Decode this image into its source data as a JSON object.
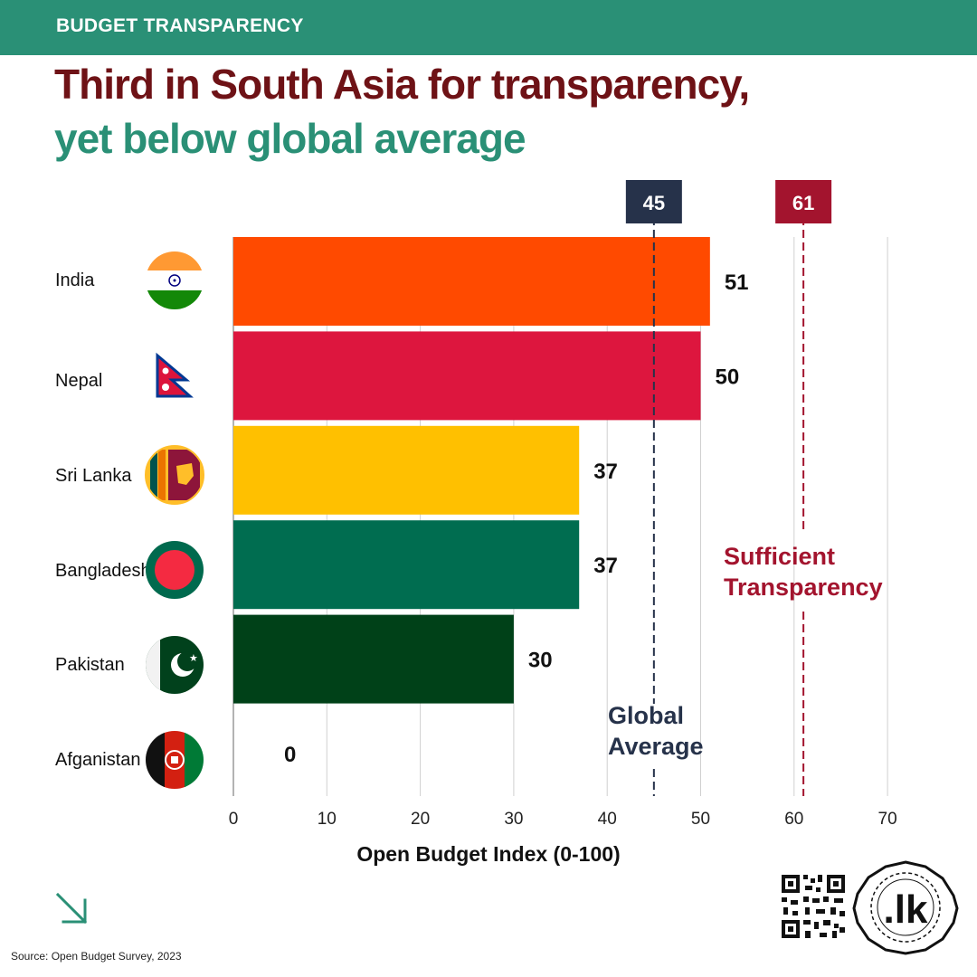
{
  "header": {
    "label": "BUDGET TRANSPARENCY"
  },
  "title": {
    "line1": "Third in South Asia for transparency,",
    "line2": "yet below global average"
  },
  "colors": {
    "brand_green": "#2a9076",
    "title_dark": "#6e1216",
    "global_average": "#26324a",
    "sufficient": "#a3142e"
  },
  "chart_data": {
    "type": "bar",
    "orientation": "horizontal",
    "categories": [
      "India",
      "Nepal",
      "Sri Lanka",
      "Bangladesh",
      "Pakistan",
      "Afganistan"
    ],
    "values": [
      51,
      50,
      37,
      37,
      30,
      0
    ],
    "bar_colors": [
      "#ff4a00",
      "#dd163e",
      "#ffc000",
      "#006d50",
      "#004118",
      "#004118"
    ],
    "value_labels": [
      "51",
      "50",
      "37",
      "37",
      "30",
      "0"
    ],
    "xlabel": "Open Budget Index (0-100)",
    "xlim": [
      0,
      70
    ],
    "xticks": [
      0,
      10,
      20,
      30,
      40,
      50,
      60,
      70
    ],
    "grid": true,
    "reference_lines": [
      {
        "value": 45,
        "badge": "45",
        "label_line1": "Global",
        "label_line2": "Average",
        "color": "#26324a"
      },
      {
        "value": 61,
        "badge": "61",
        "label_line1": "Sufficient",
        "label_line2": "Transparency",
        "color": "#a3142e"
      }
    ]
  },
  "flags": [
    {
      "country": "India",
      "icon": "india-flag-icon"
    },
    {
      "country": "Nepal",
      "icon": "nepal-flag-icon"
    },
    {
      "country": "Sri Lanka",
      "icon": "sri-lanka-flag-icon"
    },
    {
      "country": "Bangladesh",
      "icon": "bangladesh-flag-icon"
    },
    {
      "country": "Pakistan",
      "icon": "pakistan-flag-icon"
    },
    {
      "country": "Afganistan",
      "icon": "afghanistan-flag-icon"
    }
  ],
  "footer": {
    "source": "Source: Open Budget Survey, 2023",
    "logo_text": ".lk",
    "arrow_icon": "arrow-down-right-icon",
    "qr_icon": "qr-code-icon"
  }
}
